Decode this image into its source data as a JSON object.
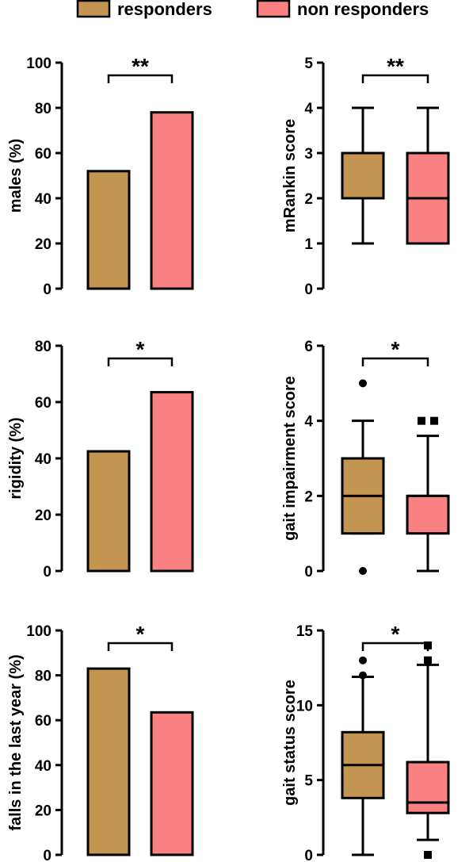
{
  "legend": {
    "items": [
      {
        "label": "responders",
        "color": "#c39550"
      },
      {
        "label": "non responders",
        "color": "#f98181"
      }
    ]
  },
  "chart_data": [
    {
      "type": "bar",
      "ylabel": "males (%)",
      "ylim": [
        0,
        100
      ],
      "yticks": [
        0,
        20,
        40,
        60,
        80,
        100
      ],
      "categories": [
        "responders",
        "non responders"
      ],
      "values": [
        52,
        78
      ],
      "significance": "**"
    },
    {
      "type": "box",
      "ylabel": "mRankin score",
      "ylim": [
        0,
        5
      ],
      "yticks": [
        0,
        1,
        2,
        3,
        4,
        5
      ],
      "categories": [
        "responders",
        "non responders"
      ],
      "boxes": [
        {
          "whisker_low": 1,
          "q1": 2,
          "median": 3,
          "q3": 3,
          "whisker_high": 4,
          "outliers": []
        },
        {
          "whisker_low": 1,
          "q1": 1,
          "median": 2,
          "q3": 3,
          "whisker_high": 4,
          "outliers": []
        }
      ],
      "significance": "**"
    },
    {
      "type": "bar",
      "ylabel": "rigidity (%)",
      "ylim": [
        0,
        80
      ],
      "yticks": [
        0,
        20,
        40,
        60,
        80
      ],
      "categories": [
        "responders",
        "non responders"
      ],
      "values": [
        42.5,
        63.5
      ],
      "significance": "*"
    },
    {
      "type": "box",
      "ylabel": "gait impairment score",
      "ylim": [
        0,
        6
      ],
      "yticks": [
        0,
        2,
        4,
        6
      ],
      "categories": [
        "responders",
        "non responders"
      ],
      "boxes": [
        {
          "whisker_low": 1,
          "q1": 1,
          "median": 2,
          "q3": 3,
          "whisker_high": 4,
          "outliers": [
            0,
            5
          ]
        },
        {
          "whisker_low": 0,
          "q1": 1,
          "median": 2,
          "q3": 2,
          "whisker_high": 3.6,
          "outliers": [
            4,
            4
          ]
        }
      ],
      "significance": "*"
    },
    {
      "type": "bar",
      "ylabel": "falls in the last year (%)",
      "ylim": [
        0,
        100
      ],
      "yticks": [
        0,
        20,
        40,
        60,
        80,
        100
      ],
      "categories": [
        "responders",
        "non responders"
      ],
      "values": [
        83,
        63.5
      ],
      "significance": "*"
    },
    {
      "type": "box",
      "ylabel": "gait status score",
      "ylim": [
        0,
        15
      ],
      "yticks": [
        0,
        5,
        10,
        15
      ],
      "categories": [
        "responders",
        "non responders"
      ],
      "boxes": [
        {
          "whisker_low": 0,
          "q1": 3.8,
          "median": 6,
          "q3": 8.2,
          "whisker_high": 11.9,
          "outliers": [
            12,
            13
          ]
        },
        {
          "whisker_low": 1,
          "q1": 2.8,
          "median": 3.5,
          "q3": 6.2,
          "whisker_high": 12.7,
          "outliers": [
            0,
            13,
            14
          ]
        }
      ],
      "significance": "*"
    }
  ]
}
